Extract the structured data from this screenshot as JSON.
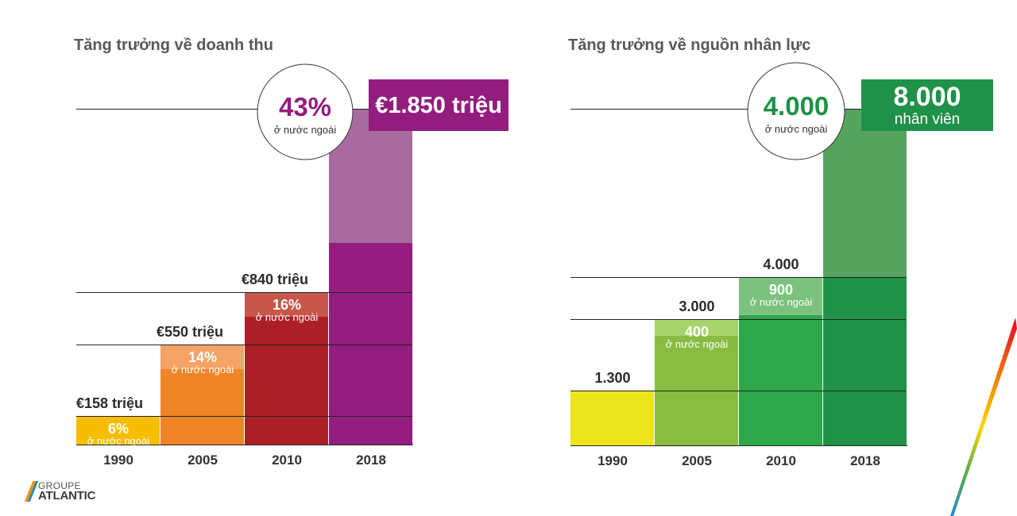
{
  "logo": {
    "line1": "GROUPE",
    "line2": "ATLANTIC"
  },
  "colors": {
    "revenue": [
      "#f7bd00",
      "#f08427",
      "#ad1f27",
      "#921d7f"
    ],
    "revenue_foreign": [
      "#f7bd00",
      "#f5a366",
      "#c6574a",
      "#a96a9f"
    ],
    "staff": [
      "#ece51c",
      "#89bc41",
      "#2ea74a",
      "#1f9148"
    ],
    "staff_foreign": [
      "#ece51c",
      "#a8d36b",
      "#7cc27e",
      "#55a35f"
    ],
    "revenue_badge": "#921d7f",
    "revenue_circle_text": "#921d7f",
    "staff_badge": "#1f9148",
    "staff_circle_text": "#1f9148"
  },
  "chart_data": [
    {
      "type": "bar",
      "title": "Tăng trưởng về doanh thu",
      "categories": [
        "1990",
        "2005",
        "2010",
        "2018"
      ],
      "values": [
        158,
        550,
        840,
        1850
      ],
      "foreign_share": [
        6,
        14,
        16,
        43
      ],
      "value_labels": [
        "€158 triệu",
        "€550 triệu",
        "€840 triệu",
        "€1.850 triệu"
      ],
      "foreign_labels": [
        "6%",
        "14%",
        "16%",
        "43%"
      ],
      "foreign_caption": "ở nước ngoài",
      "ylabel": "",
      "grid": true
    },
    {
      "type": "bar",
      "title": "Tăng trưởng về nguồn nhân lực",
      "categories": [
        "1990",
        "2005",
        "2010",
        "2018"
      ],
      "values": [
        1300,
        3000,
        4000,
        8000
      ],
      "foreign_counts": [
        0,
        400,
        900,
        4000
      ],
      "value_labels": [
        "1.300",
        "3.000",
        "4.000",
        "8.000"
      ],
      "foreign_labels": [
        "",
        "400",
        "900",
        "4.000"
      ],
      "foreign_caption": "ở nước ngoài",
      "badge_caption": "nhân viên",
      "ylabel": "",
      "grid": true
    }
  ]
}
